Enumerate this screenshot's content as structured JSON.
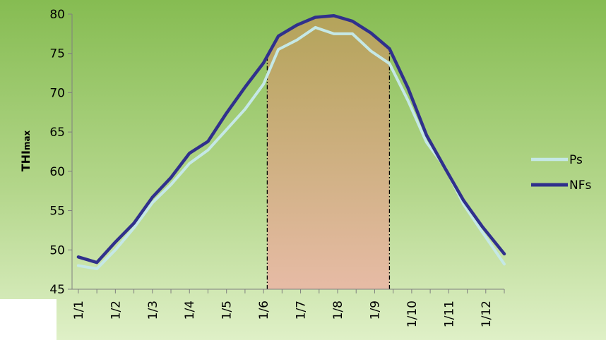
{
  "chart_data": {
    "type": "line",
    "title": "",
    "ylabel": "THImax",
    "ylabel_main": "THI",
    "ylabel_sub": "max",
    "xlabel": "",
    "ylim": [
      45,
      80
    ],
    "y_ticks": [
      45,
      50,
      55,
      60,
      65,
      70,
      75,
      80
    ],
    "x_ticks": [
      "1/1",
      "1/2",
      "1/3",
      "1/4",
      "1/5",
      "1/6",
      "1/7",
      "1/8",
      "1/9",
      "1/10",
      "1/11",
      "1/12"
    ],
    "x_month_range": [
      1,
      12.5
    ],
    "legend_position": "right",
    "shaded_region": {
      "from_month": 6.1,
      "to_month": 9.4,
      "color": "#e5b8a3"
    },
    "series": [
      {
        "name": "Ps",
        "color": "#c5e8e6",
        "x": [
          1,
          1.5,
          2,
          2.5,
          3,
          3.5,
          4,
          4.5,
          5,
          5.5,
          6,
          6.4,
          6.9,
          7.4,
          7.9,
          8.4,
          8.9,
          9.4,
          9.9,
          10.4,
          10.9,
          11.4,
          11.9,
          12.5
        ],
        "values": [
          48.0,
          47.6,
          50.0,
          52.8,
          56.0,
          58.3,
          61.0,
          62.7,
          65.3,
          67.9,
          71.1,
          75.5,
          76.7,
          78.3,
          77.5,
          77.5,
          75.3,
          73.7,
          69.0,
          63.7,
          60.5,
          55.8,
          52.3,
          48.2
        ]
      },
      {
        "name": "NFs",
        "color": "#30308c",
        "x": [
          1,
          1.5,
          2,
          2.5,
          3,
          3.5,
          4,
          4.5,
          5,
          5.5,
          6,
          6.4,
          6.9,
          7.4,
          7.9,
          8.4,
          8.9,
          9.4,
          9.9,
          10.4,
          10.9,
          11.4,
          11.9,
          12.5
        ],
        "values": [
          49.1,
          48.4,
          51.0,
          53.4,
          56.7,
          59.2,
          62.3,
          63.8,
          67.4,
          70.7,
          73.8,
          77.2,
          78.6,
          79.6,
          79.8,
          79.1,
          77.6,
          75.6,
          70.6,
          64.6,
          60.4,
          56.3,
          53.0,
          49.5
        ]
      }
    ]
  }
}
